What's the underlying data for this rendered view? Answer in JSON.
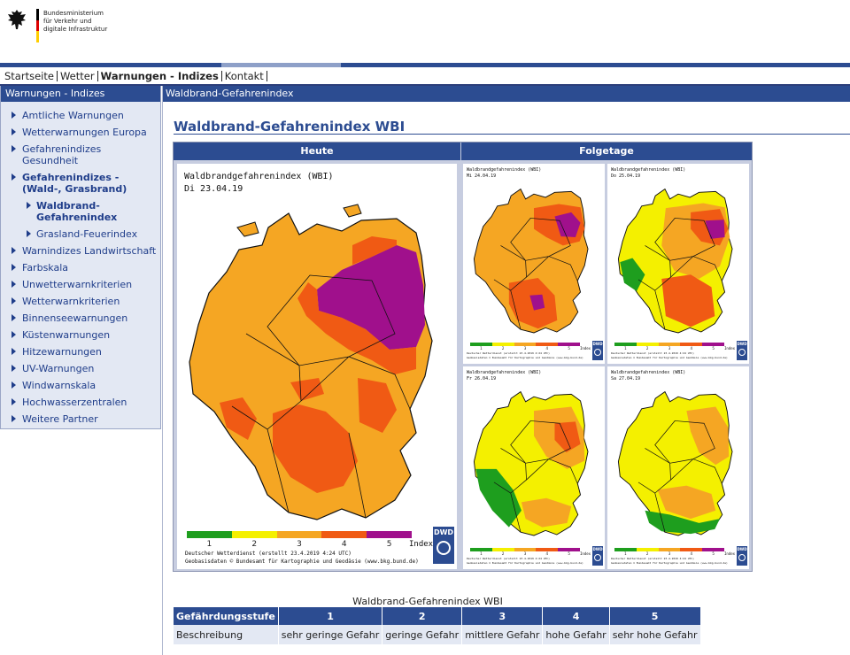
{
  "header": {
    "logo_lines": [
      "Bundesministerium",
      "für Verkehr und",
      "digitale Infrastruktur"
    ]
  },
  "topnav": {
    "items": [
      "Startseite",
      "Wetter",
      "Warnungen - Indizes",
      "Kontakt"
    ],
    "active": "Warnungen - Indizes"
  },
  "sidebar": {
    "title": "Warnungen - Indizes",
    "items": [
      {
        "label": "Amtliche Warnungen",
        "level": 0,
        "bold": false
      },
      {
        "label": "Wetterwarnungen Europa",
        "level": 0,
        "bold": false
      },
      {
        "label": "Gefahrenindizes Gesundheit",
        "level": 0,
        "bold": false
      },
      {
        "label": "Gefahrenindizes - (Wald-, Grasbrand)",
        "level": 0,
        "bold": true
      },
      {
        "label": "Waldbrand-Gefahrenindex",
        "level": 1,
        "bold": true
      },
      {
        "label": "Grasland-Feuerindex",
        "level": 1,
        "bold": false
      },
      {
        "label": "Warnindizes Landwirtschaft",
        "level": 0,
        "bold": false
      },
      {
        "label": "Farbskala",
        "level": 0,
        "bold": false
      },
      {
        "label": "Unwetterwarnkriterien",
        "level": 0,
        "bold": false
      },
      {
        "label": "Wetterwarnkriterien",
        "level": 0,
        "bold": false
      },
      {
        "label": "Binnenseewarnungen",
        "level": 0,
        "bold": false
      },
      {
        "label": "Küstenwarnungen",
        "level": 0,
        "bold": false
      },
      {
        "label": "Hitzewarnungen",
        "level": 0,
        "bold": false
      },
      {
        "label": "UV-Warnungen",
        "level": 0,
        "bold": false
      },
      {
        "label": "Windwarnskala",
        "level": 0,
        "bold": false
      },
      {
        "label": "Hochwasserzentralen",
        "level": 0,
        "bold": false
      },
      {
        "label": "Weitere Partner",
        "level": 0,
        "bold": false
      }
    ]
  },
  "main": {
    "bar_title": "Waldbrand-Gefahrenindex",
    "page_title": "Waldbrand-Gefahrenindex WBI",
    "col_today": "Heute",
    "col_next": "Folgetage",
    "main_map": {
      "title": "Waldbrandgefahrenindex (WBI)",
      "date": "Di 23.04.19",
      "footer1": "Deutscher Wetterdienst (erstellt 23.4.2019 4:24 UTC)",
      "footer2": "Geobasisdaten © Bundesamt für Kartographie und Geodäsie (www.bkg.bund.de)"
    },
    "small_maps": [
      {
        "title": "Waldbrandgefahrenindex (WBI)",
        "date": "Mi 24.04.19"
      },
      {
        "title": "Waldbrandgefahrenindex (WBI)",
        "date": "Do 25.04.19"
      },
      {
        "title": "Waldbrandgefahrenindex (WBI)",
        "date": "Fr 26.04.19"
      },
      {
        "title": "Waldbrandgefahrenindex (WBI)",
        "date": "Sa 27.04.19"
      }
    ],
    "small_footer1": "Deutscher Wetterdienst (erstellt 23.4.2019 4:24 UTC)",
    "small_footer2": "Geobasisdaten © Bundesamt für Kartographie und Geodäsie (www.bkg.bund.de)",
    "legend": {
      "labels": [
        "1",
        "2",
        "3",
        "4",
        "5"
      ],
      "unit": "Index",
      "colors": [
        "#1e9e1e",
        "#f4f000",
        "#f5a623",
        "#f05a14",
        "#a0108c"
      ]
    },
    "dwd_logo": "DWD"
  },
  "table": {
    "caption": "Waldbrand-Gefahrenindex WBI",
    "head_label": "Gefährdungsstufe",
    "levels": [
      "1",
      "2",
      "3",
      "4",
      "5"
    ],
    "row_label": "Beschreibung",
    "descriptions": [
      "sehr geringe Gefahr",
      "geringe Gefahr",
      "mittlere Gefahr",
      "hohe Gefahr",
      "sehr hohe Gefahr"
    ]
  },
  "colors": {
    "navy": "#2c4c91",
    "sidebar_bg": "#e3e8f3",
    "link": "#1f3d8a"
  }
}
